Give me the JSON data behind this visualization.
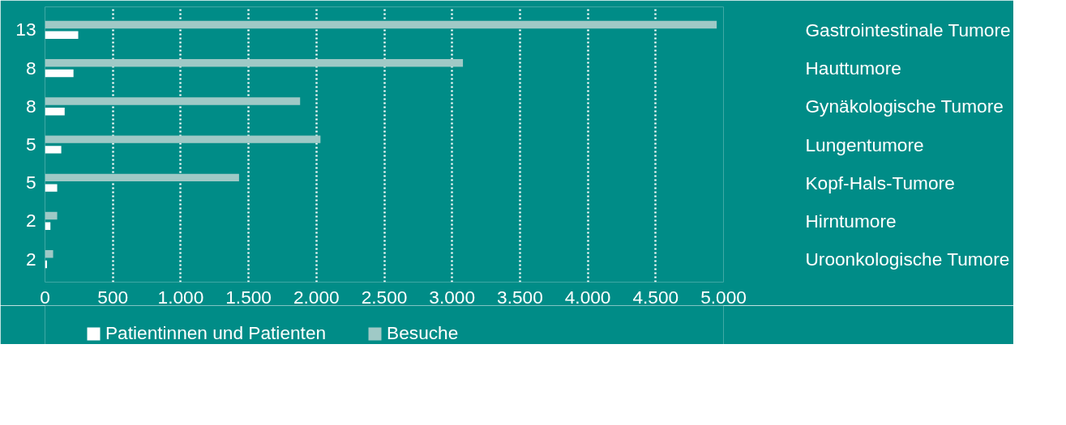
{
  "chart_data": {
    "type": "bar",
    "orientation": "horizontal",
    "categories": [
      "Gastrointestinale Tumore",
      "Hauttumore",
      "Gynäkologische Tumore",
      "Lungentumore",
      "Kopf-Hals-Tumore",
      "Hirntumore",
      "Uroonkologische Tumore"
    ],
    "series": [
      {
        "name": "Patientinnen und Patienten",
        "color": "#ffffff",
        "values": [
          245,
          210,
          145,
          120,
          90,
          40,
          15
        ]
      },
      {
        "name": "Besuche",
        "color": "#9fc9c6",
        "values": [
          4950,
          3080,
          1880,
          2030,
          1430,
          90,
          60
        ]
      }
    ],
    "annotations": [
      "13",
      "8",
      "8",
      "5",
      "5",
      "2",
      "2"
    ],
    "xlim": [
      0,
      5000
    ],
    "xticks": [
      0,
      {
        "value": 500,
        "label": "500"
      },
      {
        "value": 1000,
        "label": "1.000"
      },
      {
        "value": 1500,
        "label": "1.500"
      },
      {
        "value": 2000,
        "label": "2.000"
      },
      {
        "value": 2500,
        "label": "2.500"
      },
      {
        "value": 3000,
        "label": "3.000"
      },
      {
        "value": 3500,
        "label": "3.500"
      },
      {
        "value": 4000,
        "label": "4.000"
      },
      {
        "value": 4500,
        "label": "4.500"
      },
      {
        "value": 5000,
        "label": "5.000"
      }
    ],
    "grid": "x",
    "legend": "bottom"
  }
}
